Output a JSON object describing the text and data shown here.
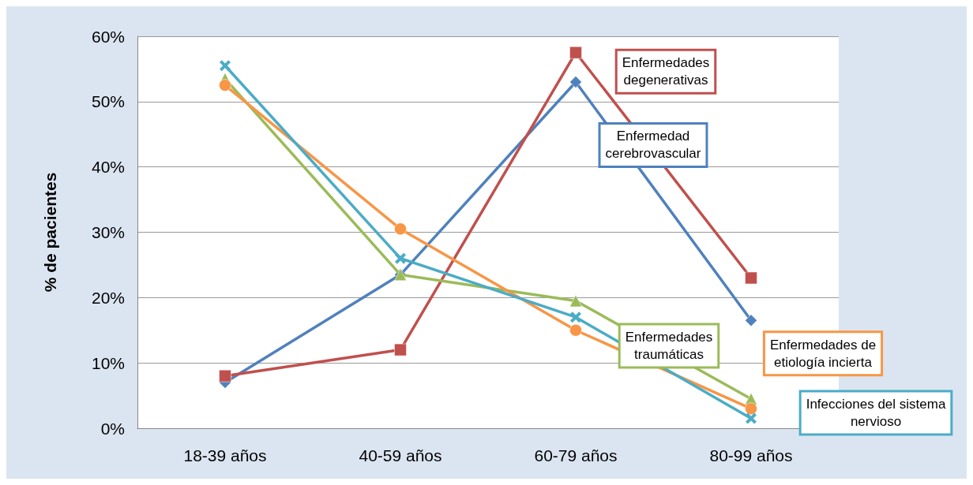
{
  "chart_data": {
    "type": "line",
    "ylabel": "% de pacientes",
    "categories": [
      "18-39 años",
      "40-59 años",
      "60-79 años",
      "80-99 años"
    ],
    "series": [
      {
        "name": "Enfermedad cerebrovascular",
        "color": "#4f81bd",
        "marker": "diamond",
        "values": [
          7,
          23.5,
          53,
          16.5
        ]
      },
      {
        "name": "Enfermedades degenerativas",
        "color": "#c0504d",
        "marker": "square",
        "values": [
          8,
          12,
          57.5,
          23
        ]
      },
      {
        "name": "Enfermedades traumáticas",
        "color": "#9bbb59",
        "marker": "triangle",
        "values": [
          53.5,
          23.5,
          19.5,
          4.5
        ]
      },
      {
        "name": "Enfermedades de etiología incierta",
        "color": "#f79646",
        "marker": "circle",
        "values": [
          52.5,
          30.5,
          15,
          3
        ]
      },
      {
        "name": "Infecciones del sistema nervioso",
        "color": "#4bacc6",
        "marker": "cross",
        "values": [
          55.5,
          26,
          17,
          1.5
        ]
      }
    ],
    "ylim": [
      0,
      60
    ],
    "yticks": [
      {
        "value": 0,
        "label": "0%"
      },
      {
        "value": 10,
        "label": "10%"
      },
      {
        "value": 20,
        "label": "20%"
      },
      {
        "value": 30,
        "label": "30%"
      },
      {
        "value": 40,
        "label": "40%"
      },
      {
        "value": 50,
        "label": "50%"
      },
      {
        "value": 60,
        "label": "60%"
      }
    ],
    "grid": "y",
    "legend": false,
    "line_style": "solid"
  }
}
